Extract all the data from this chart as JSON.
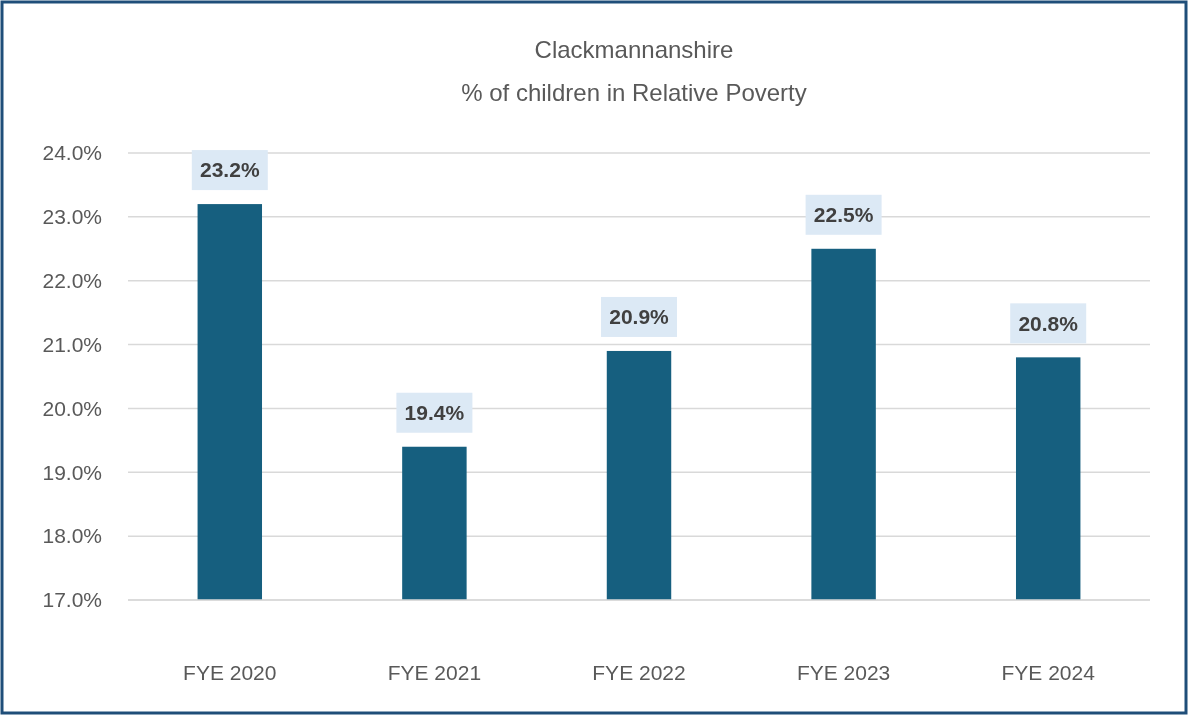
{
  "chart_data": {
    "type": "bar",
    "title": "Clackmannanshire",
    "subtitle": "% of children in Relative Poverty",
    "categories": [
      "FYE 2020",
      "FYE 2021",
      "FYE 2022",
      "FYE 2023",
      "FYE 2024"
    ],
    "values": [
      23.2,
      19.4,
      20.9,
      22.5,
      20.8
    ],
    "value_labels": [
      "23.2%",
      "19.4%",
      "20.9%",
      "22.5%",
      "20.8%"
    ],
    "color": "#165f7f",
    "ylim": [
      17,
      24
    ],
    "yticks": [
      {
        "value": 17,
        "label": "17.0%"
      },
      {
        "value": 18,
        "label": "18.0%"
      },
      {
        "value": 19,
        "label": "19.0%"
      },
      {
        "value": 20,
        "label": "20.0%"
      },
      {
        "value": 21,
        "label": "21.0%"
      },
      {
        "value": 22,
        "label": "22.0%"
      },
      {
        "value": 23,
        "label": "23.0%"
      },
      {
        "value": 24,
        "label": "24.0%"
      }
    ],
    "grid": "y"
  }
}
